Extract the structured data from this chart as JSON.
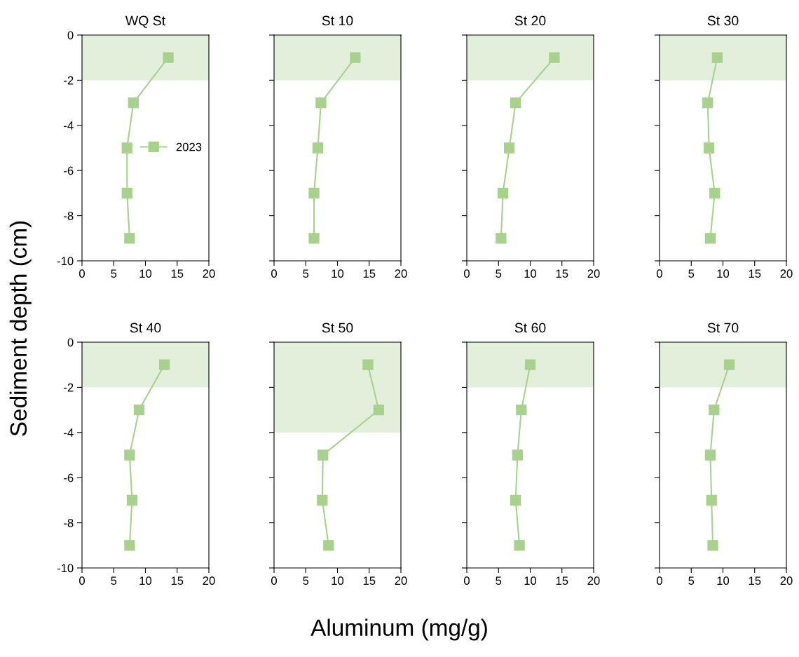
{
  "chart_data": [
    {
      "type": "line",
      "title": "WQ St",
      "xlabel": "Aluminum (mg/g)",
      "ylabel": "Sediment depth (cm)",
      "xlim": [
        0,
        20
      ],
      "xticks": [
        0,
        5,
        10,
        15,
        20
      ],
      "ylim": [
        -10,
        0
      ],
      "yticks": [
        -10,
        -8,
        -6,
        -4,
        -2,
        0
      ],
      "marker": "square",
      "grid": false,
      "legend": "right",
      "bands": [
        {
          "axis": "y",
          "from": -2,
          "to": 0,
          "color": "#e2efda"
        }
      ],
      "series": [
        {
          "name": "2023",
          "color": "#a9d18e",
          "x": [
            13.6,
            8.1,
            7.1,
            7.1,
            7.5
          ],
          "values": [
            -1,
            -3,
            -5,
            -7,
            -9
          ]
        }
      ]
    },
    {
      "type": "line",
      "title": "St 10",
      "xlim": [
        0,
        20
      ],
      "xticks": [
        0,
        5,
        10,
        15,
        20
      ],
      "ylim": [
        -10,
        0
      ],
      "yticks": [
        -10,
        -8,
        -6,
        -4,
        -2,
        0
      ],
      "tick_labels": "x",
      "marker": "square",
      "grid": false,
      "bands": [
        {
          "axis": "y",
          "from": -2,
          "to": 0,
          "color": "#e2efda"
        }
      ],
      "series": [
        {
          "color": "#a9d18e",
          "x": [
            12.8,
            7.4,
            6.9,
            6.3,
            6.3
          ],
          "values": [
            -1,
            -3,
            -5,
            -7,
            -9
          ]
        }
      ]
    },
    {
      "type": "line",
      "title": "St 20",
      "xlim": [
        0,
        20
      ],
      "xticks": [
        0,
        5,
        10,
        15,
        20
      ],
      "ylim": [
        -10,
        0
      ],
      "yticks": [
        -10,
        -8,
        -6,
        -4,
        -2,
        0
      ],
      "tick_labels": "x",
      "marker": "square",
      "grid": false,
      "bands": [
        {
          "axis": "y",
          "from": -2,
          "to": 0,
          "color": "#e2efda"
        }
      ],
      "series": [
        {
          "color": "#a9d18e",
          "x": [
            13.8,
            7.7,
            6.7,
            5.7,
            5.4
          ],
          "values": [
            -1,
            -3,
            -5,
            -7,
            -9
          ]
        }
      ]
    },
    {
      "type": "line",
      "title": "St 30",
      "xlim": [
        0,
        20
      ],
      "xticks": [
        0,
        5,
        10,
        15,
        20
      ],
      "ylim": [
        -10,
        0
      ],
      "yticks": [
        -10,
        -8,
        -6,
        -4,
        -2,
        0
      ],
      "tick_labels": "x",
      "marker": "square",
      "grid": false,
      "bands": [
        {
          "axis": "y",
          "from": -2,
          "to": 0,
          "color": "#e2efda"
        }
      ],
      "series": [
        {
          "color": "#a9d18e",
          "x": [
            9.1,
            7.6,
            7.8,
            8.7,
            8.0
          ],
          "values": [
            -1,
            -3,
            -5,
            -7,
            -9
          ]
        }
      ]
    },
    {
      "type": "line",
      "title": "St 40",
      "xlim": [
        0,
        20
      ],
      "xticks": [
        0,
        5,
        10,
        15,
        20
      ],
      "ylim": [
        -10,
        0
      ],
      "yticks": [
        -10,
        -8,
        -6,
        -4,
        -2,
        0
      ],
      "marker": "square",
      "grid": false,
      "bands": [
        {
          "axis": "y",
          "from": -2,
          "to": 0,
          "color": "#e2efda"
        }
      ],
      "series": [
        {
          "color": "#a9d18e",
          "x": [
            13.0,
            9.0,
            7.5,
            7.9,
            7.5
          ],
          "values": [
            -1,
            -3,
            -5,
            -7,
            -9
          ]
        }
      ]
    },
    {
      "type": "line",
      "title": "St 50",
      "xlim": [
        0,
        20
      ],
      "xticks": [
        0,
        5,
        10,
        15,
        20
      ],
      "ylim": [
        -10,
        0
      ],
      "yticks": [
        -10,
        -8,
        -6,
        -4,
        -2,
        0
      ],
      "tick_labels": "x",
      "marker": "square",
      "grid": false,
      "bands": [
        {
          "axis": "y",
          "from": -4,
          "to": 0,
          "color": "#e2efda"
        }
      ],
      "series": [
        {
          "color": "#a9d18e",
          "x": [
            14.8,
            16.5,
            7.7,
            7.6,
            8.6
          ],
          "values": [
            -1,
            -3,
            -5,
            -7,
            -9
          ]
        }
      ]
    },
    {
      "type": "line",
      "title": "St 60",
      "xlim": [
        0,
        20
      ],
      "xticks": [
        0,
        5,
        10,
        15,
        20
      ],
      "ylim": [
        -10,
        0
      ],
      "yticks": [
        -10,
        -8,
        -6,
        -4,
        -2,
        0
      ],
      "tick_labels": "x",
      "marker": "square",
      "grid": false,
      "bands": [
        {
          "axis": "y",
          "from": -2,
          "to": 0,
          "color": "#e2efda"
        }
      ],
      "series": [
        {
          "color": "#a9d18e",
          "x": [
            10.0,
            8.6,
            8.0,
            7.7,
            8.3
          ],
          "values": [
            -1,
            -3,
            -5,
            -7,
            -9
          ]
        }
      ]
    },
    {
      "type": "line",
      "title": "St 70",
      "xlim": [
        0,
        20
      ],
      "xticks": [
        0,
        5,
        10,
        15,
        20
      ],
      "ylim": [
        -10,
        0
      ],
      "yticks": [
        -10,
        -8,
        -6,
        -4,
        -2,
        0
      ],
      "tick_labels": "x",
      "marker": "square",
      "grid": false,
      "bands": [
        {
          "axis": "y",
          "from": -2,
          "to": 0,
          "color": "#e2efda"
        }
      ],
      "series": [
        {
          "color": "#a9d18e",
          "x": [
            11.0,
            8.6,
            8.0,
            8.2,
            8.4
          ],
          "values": [
            -1,
            -3,
            -5,
            -7,
            -9
          ]
        }
      ]
    }
  ]
}
